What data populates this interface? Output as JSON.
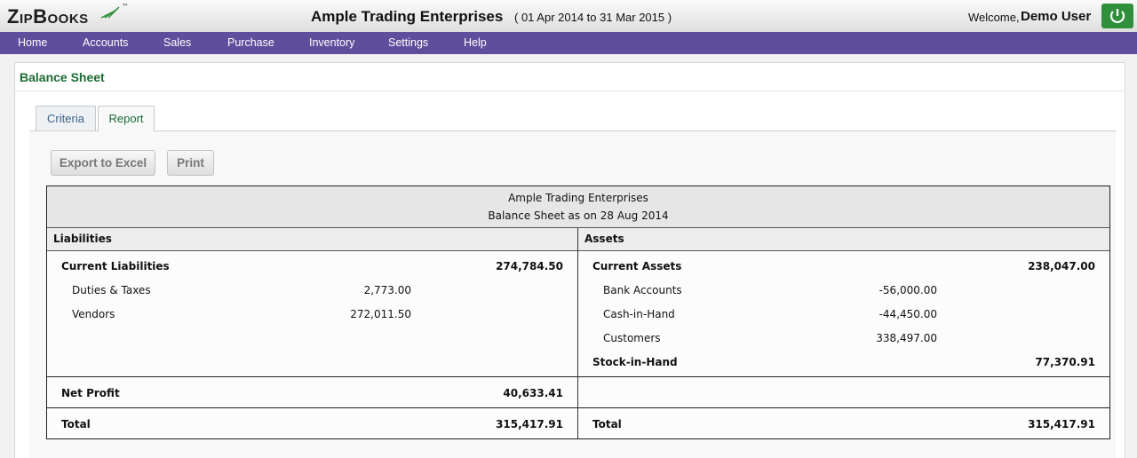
{
  "header": {
    "logo": "ZipBooks",
    "logo_tm": "™",
    "company": "Ample Trading Enterprises",
    "period": "( 01 Apr 2014 to 31 Mar 2015 )",
    "welcome": "Welcome,",
    "user": "Demo User"
  },
  "nav": [
    "Home",
    "Accounts",
    "Sales",
    "Purchase",
    "Inventory",
    "Settings",
    "Help"
  ],
  "page_title": "Balance Sheet",
  "tabs": [
    "Criteria",
    "Report"
  ],
  "buttons": [
    "Export to Excel",
    "Print"
  ],
  "report": {
    "company": "Ample Trading Enterprises",
    "subtitle": "Balance Sheet as on 28 Aug 2014",
    "liabilities": {
      "heading": "Liabilities",
      "groups": [
        {
          "name": "Current Liabilities",
          "total": "274,784.50",
          "items": [
            {
              "name": "Duties & Taxes",
              "amount": "2,773.00"
            },
            {
              "name": "Vendors",
              "amount": "272,011.50"
            }
          ]
        }
      ],
      "net_profit": {
        "label": "Net Profit",
        "amount": "40,633.41"
      },
      "total": {
        "label": "Total",
        "amount": "315,417.91"
      }
    },
    "assets": {
      "heading": "Assets",
      "groups": [
        {
          "name": "Current Assets",
          "total": "238,047.00",
          "items": [
            {
              "name": "Bank Accounts",
              "amount": "-56,000.00"
            },
            {
              "name": "Cash-in-Hand",
              "amount": "-44,450.00"
            },
            {
              "name": "Customers",
              "amount": "338,497.00"
            }
          ]
        },
        {
          "name": "Stock-in-Hand",
          "total": "77,370.91",
          "items": []
        }
      ],
      "total": {
        "label": "Total",
        "amount": "315,417.91"
      }
    }
  }
}
